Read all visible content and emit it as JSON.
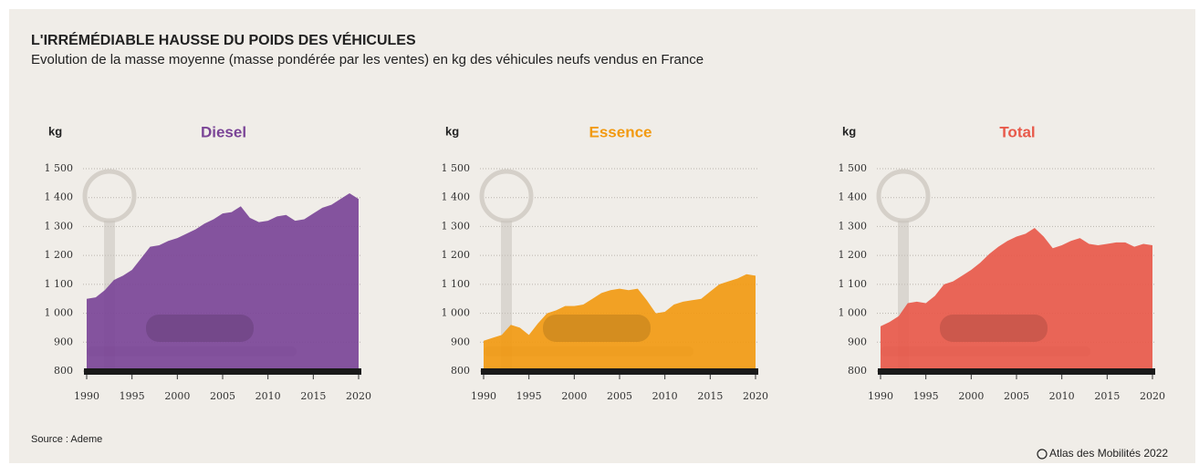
{
  "title": "L'IRRÉMÉDIABLE HAUSSE DU POIDS DES VÉHICULES",
  "subtitle": "Evolution de la masse moyenne (masse pondérée par les ventes) en kg des véhicules neufs vendus en France",
  "source": "Source : Ademe",
  "credit": "Atlas des Mobilités 2022",
  "chart_data": [
    {
      "type": "area",
      "title": "Diesel",
      "y_label": "kg",
      "color": "#7b4597",
      "x": [
        1990,
        1991,
        1992,
        1993,
        1994,
        1995,
        1996,
        1997,
        1998,
        1999,
        2000,
        2001,
        2002,
        2003,
        2004,
        2005,
        2006,
        2007,
        2008,
        2009,
        2010,
        2011,
        2012,
        2013,
        2014,
        2015,
        2016,
        2017,
        2018,
        2019,
        2020
      ],
      "values": [
        1050,
        1055,
        1080,
        1115,
        1130,
        1150,
        1190,
        1230,
        1235,
        1250,
        1260,
        1275,
        1290,
        1310,
        1325,
        1345,
        1350,
        1370,
        1330,
        1315,
        1320,
        1335,
        1340,
        1320,
        1325,
        1345,
        1365,
        1375,
        1395,
        1415,
        1395
      ],
      "xlim": [
        1990,
        2020
      ],
      "xticks": [
        1990,
        1995,
        2000,
        2005,
        2010,
        2015,
        2020
      ],
      "ylim": [
        800,
        1500
      ],
      "yticks": [
        800,
        900,
        {
          "value": 1000,
          "label": "1 000"
        },
        {
          "value": 1100,
          "label": "1 100"
        },
        {
          "value": 1200,
          "label": "1 200"
        },
        {
          "value": 1300,
          "label": "1 300"
        },
        {
          "value": 1400,
          "label": "1 400"
        },
        {
          "value": 1500,
          "label": "1 500"
        }
      ],
      "grid": true
    },
    {
      "type": "area",
      "title": "Essence",
      "y_label": "kg",
      "color": "#f29a12",
      "x": [
        1990,
        1991,
        1992,
        1993,
        1994,
        1995,
        1996,
        1997,
        1998,
        1999,
        2000,
        2001,
        2002,
        2003,
        2004,
        2005,
        2006,
        2007,
        2008,
        2009,
        2010,
        2011,
        2012,
        2013,
        2014,
        2015,
        2016,
        2017,
        2018,
        2019,
        2020
      ],
      "values": [
        905,
        915,
        925,
        960,
        950,
        925,
        965,
        1000,
        1010,
        1025,
        1025,
        1030,
        1050,
        1070,
        1080,
        1085,
        1080,
        1085,
        1045,
        1000,
        1005,
        1030,
        1040,
        1045,
        1050,
        1075,
        1100,
        1110,
        1120,
        1135,
        1130
      ],
      "xlim": [
        1990,
        2020
      ],
      "xticks": [
        1990,
        1995,
        2000,
        2005,
        2010,
        2015,
        2020
      ],
      "ylim": [
        800,
        1500
      ],
      "yticks": [
        800,
        900,
        {
          "value": 1000,
          "label": "1 000"
        },
        {
          "value": 1100,
          "label": "1 100"
        },
        {
          "value": 1200,
          "label": "1 200"
        },
        {
          "value": 1300,
          "label": "1 300"
        },
        {
          "value": 1400,
          "label": "1 400"
        },
        {
          "value": 1500,
          "label": "1 500"
        }
      ],
      "grid": true
    },
    {
      "type": "area",
      "title": "Total",
      "y_label": "kg",
      "color": "#e8594a",
      "x": [
        1990,
        1991,
        1992,
        1993,
        1994,
        1995,
        1996,
        1997,
        1998,
        1999,
        2000,
        2001,
        2002,
        2003,
        2004,
        2005,
        2006,
        2007,
        2008,
        2009,
        2010,
        2011,
        2012,
        2013,
        2014,
        2015,
        2016,
        2017,
        2018,
        2019,
        2020
      ],
      "values": [
        955,
        970,
        990,
        1035,
        1040,
        1035,
        1060,
        1100,
        1110,
        1130,
        1150,
        1175,
        1205,
        1230,
        1250,
        1265,
        1275,
        1295,
        1265,
        1225,
        1235,
        1250,
        1260,
        1240,
        1235,
        1240,
        1245,
        1245,
        1230,
        1240,
        1235
      ],
      "xlim": [
        1990,
        2020
      ],
      "xticks": [
        1990,
        1995,
        2000,
        2005,
        2010,
        2015,
        2020
      ],
      "ylim": [
        800,
        1500
      ],
      "yticks": [
        800,
        900,
        {
          "value": 1000,
          "label": "1 000"
        },
        {
          "value": 1100,
          "label": "1 100"
        },
        {
          "value": 1200,
          "label": "1 200"
        },
        {
          "value": 1300,
          "label": "1 300"
        },
        {
          "value": 1400,
          "label": "1 400"
        },
        {
          "value": 1500,
          "label": "1 500"
        }
      ],
      "grid": true
    }
  ]
}
